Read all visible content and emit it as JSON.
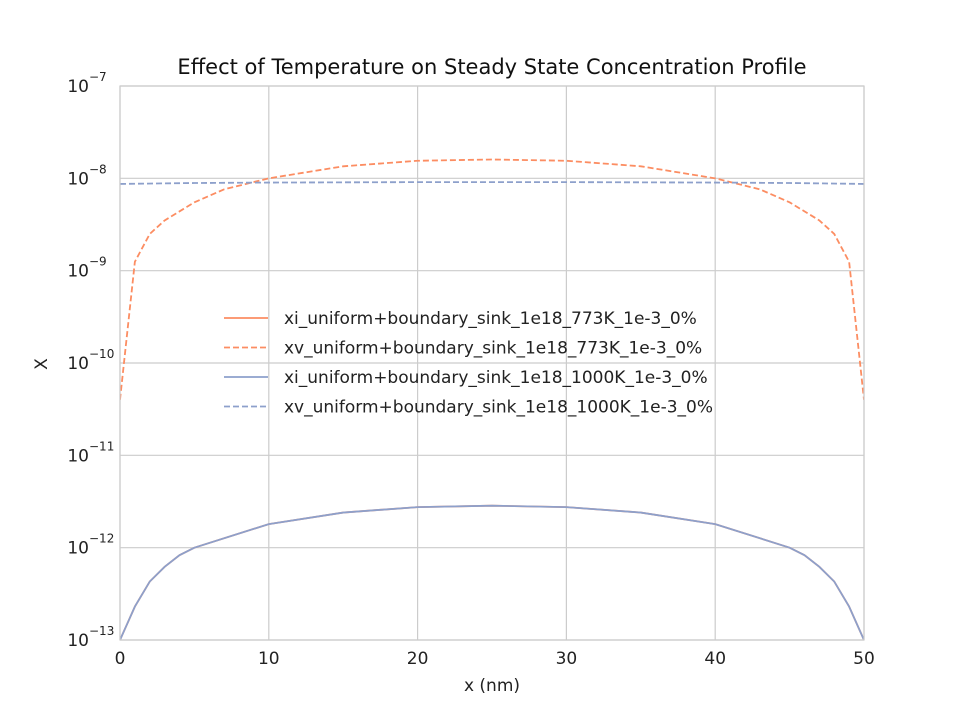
{
  "chart_data": {
    "type": "line",
    "title": "Effect of Temperature on Steady State Concentration Profile",
    "xlabel": "x (nm)",
    "ylabel": "X",
    "xlim": [
      0,
      50
    ],
    "ylim": [
      1e-13,
      1e-07
    ],
    "yscale": "log",
    "grid": true,
    "legend_location": "center-left",
    "x_ticks": [
      "0",
      "10",
      "20",
      "30",
      "40",
      "50"
    ],
    "y_ticks": [
      {
        "base": "10",
        "exp": "−13"
      },
      {
        "base": "10",
        "exp": "−12"
      },
      {
        "base": "10",
        "exp": "−11"
      },
      {
        "base": "10",
        "exp": "−10"
      },
      {
        "base": "10",
        "exp": "−9"
      },
      {
        "base": "10",
        "exp": "−8"
      },
      {
        "base": "10",
        "exp": "−7"
      }
    ],
    "series": [
      {
        "name": "xi_uniform+boundary_sink_1e18_773K_1e-3_0%",
        "color": "#fc8d62",
        "style": "solid",
        "x": [
          0,
          1,
          2,
          3,
          4,
          5,
          10,
          15,
          20,
          25,
          30,
          35,
          40,
          45,
          46,
          47,
          48,
          49,
          50
        ],
        "y": [
          1e-13,
          2.3e-13,
          4.3e-13,
          6.2e-13,
          8.3e-13,
          1e-12,
          1.8e-12,
          2.4e-12,
          2.75e-12,
          2.85e-12,
          2.75e-12,
          2.4e-12,
          1.8e-12,
          1e-12,
          8.3e-13,
          6.2e-13,
          4.3e-13,
          2.3e-13,
          1e-13
        ]
      },
      {
        "name": "xv_uniform+boundary_sink_1e18_773K_1e-3_0%",
        "color": "#fc8d62",
        "style": "dashed",
        "x": [
          0,
          1,
          2,
          3,
          5,
          7,
          10,
          15,
          20,
          25,
          30,
          35,
          40,
          43,
          45,
          47,
          48,
          49,
          50
        ],
        "y": [
          4e-11,
          1.25e-09,
          2.5e-09,
          3.5e-09,
          5.5e-09,
          7.6e-09,
          1e-08,
          1.35e-08,
          1.55e-08,
          1.6e-08,
          1.55e-08,
          1.35e-08,
          1e-08,
          7.6e-09,
          5.5e-09,
          3.5e-09,
          2.5e-09,
          1.25e-09,
          4e-11
        ]
      },
      {
        "name": "xi_uniform+boundary_sink_1e18_1000K_1e-3_0%",
        "color": "#8da0cb",
        "style": "solid",
        "x": [
          0,
          1,
          2,
          3,
          4,
          5,
          10,
          15,
          20,
          25,
          30,
          35,
          40,
          45,
          46,
          47,
          48,
          49,
          50
        ],
        "y": [
          1e-13,
          2.3e-13,
          4.3e-13,
          6.2e-13,
          8.3e-13,
          1e-12,
          1.8e-12,
          2.4e-12,
          2.75e-12,
          2.85e-12,
          2.75e-12,
          2.4e-12,
          1.8e-12,
          1e-12,
          8.3e-13,
          6.2e-13,
          4.3e-13,
          2.3e-13,
          1e-13
        ]
      },
      {
        "name": "xv_uniform+boundary_sink_1e18_1000K_1e-3_0%",
        "color": "#8da0cb",
        "style": "dashed",
        "x": [
          0,
          5,
          10,
          20,
          25,
          30,
          40,
          45,
          50
        ],
        "y": [
          8.7e-09,
          8.9e-09,
          9e-09,
          9.1e-09,
          9.1e-09,
          9.1e-09,
          9e-09,
          8.9e-09,
          8.7e-09
        ]
      }
    ]
  }
}
